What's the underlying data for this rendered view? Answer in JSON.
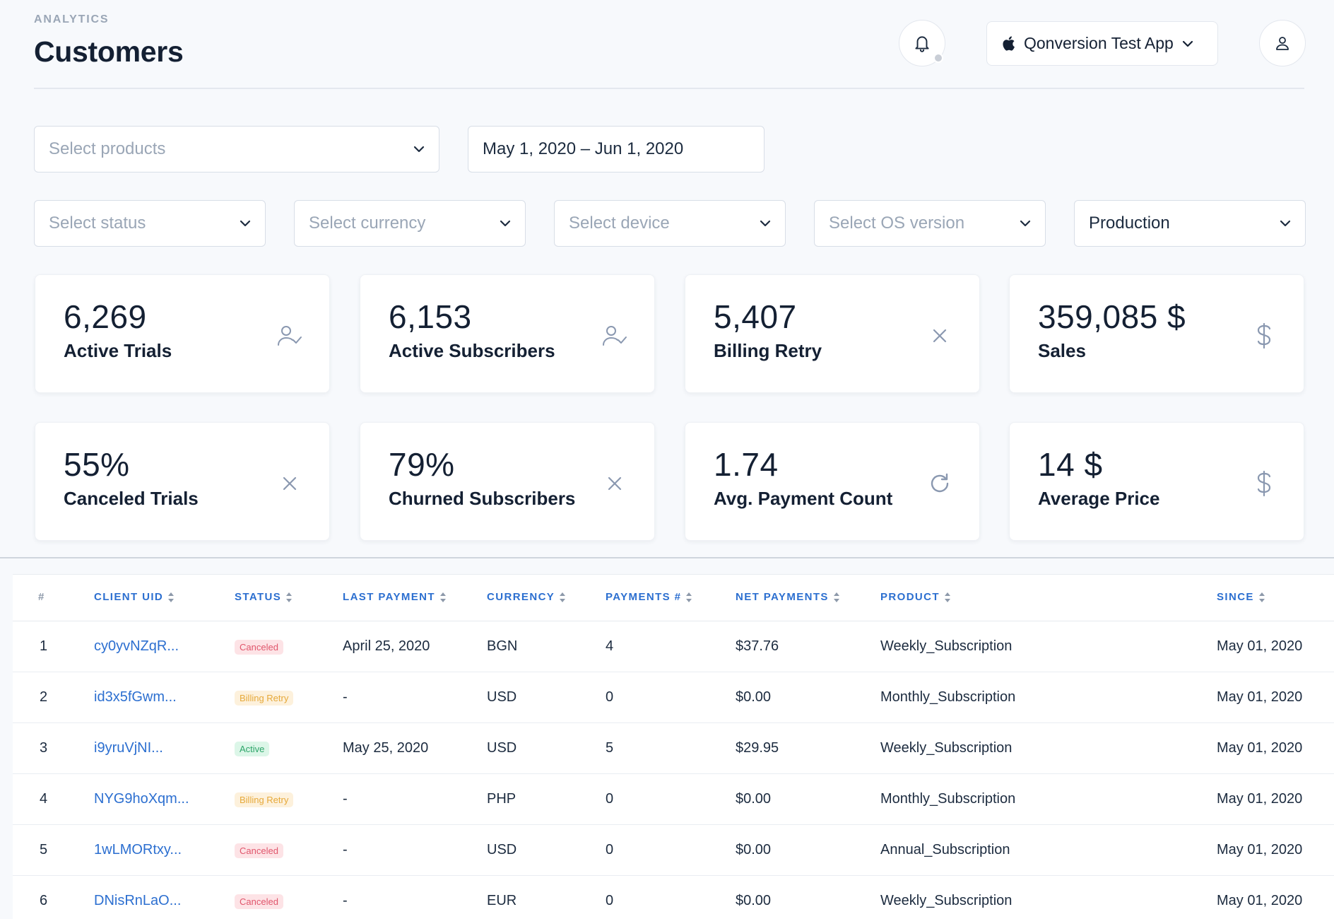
{
  "header": {
    "eyebrow": "ANALYTICS",
    "title": "Customers",
    "app_name": "Qonversion Test App"
  },
  "filters": {
    "products_placeholder": "Select products",
    "date_range": "May 1, 2020 – Jun 1, 2020",
    "status_placeholder": "Select status",
    "currency_placeholder": "Select currency",
    "device_placeholder": "Select device",
    "os_placeholder": "Select OS version",
    "environment": "Production"
  },
  "stats": [
    {
      "value": "6,269",
      "caption": "Active Trials",
      "icon": "user-check-icon"
    },
    {
      "value": "6,153",
      "caption": "Active Subscribers",
      "icon": "user-check-icon"
    },
    {
      "value": "5,407",
      "caption": "Billing Retry",
      "icon": "close-icon"
    },
    {
      "value": "359,085 $",
      "caption": "Sales",
      "icon": "dollar-icon"
    },
    {
      "value": "55%",
      "caption": "Canceled Trials",
      "icon": "close-icon"
    },
    {
      "value": "79%",
      "caption": "Churned Subscribers",
      "icon": "close-icon"
    },
    {
      "value": "1.74",
      "caption": "Avg. Payment Count",
      "icon": "refresh-icon"
    },
    {
      "value": "14 $",
      "caption": "Average Price",
      "icon": "dollar-icon"
    }
  ],
  "table": {
    "columns": [
      "#",
      "CLIENT UID",
      "STATUS",
      "LAST PAYMENT",
      "CURRENCY",
      "PAYMENTS #",
      "NET PAYMENTS",
      "PRODUCT",
      "SINCE"
    ],
    "rows": [
      {
        "num": "1",
        "uid": "cy0yvNZqR...",
        "status": "Canceled",
        "status_kind": "canceled",
        "last_payment": "April 25, 2020",
        "currency": "BGN",
        "payments": "4",
        "net": "$37.76",
        "product": "Weekly_Subscription",
        "since": "May 01, 2020"
      },
      {
        "num": "2",
        "uid": "id3x5fGwm...",
        "status": "Billing Retry",
        "status_kind": "retry",
        "last_payment": "-",
        "currency": "USD",
        "payments": "0",
        "net": "$0.00",
        "product": "Monthly_Subscription",
        "since": "May 01, 2020"
      },
      {
        "num": "3",
        "uid": "i9yruVjNI...",
        "status": "Active",
        "status_kind": "active",
        "last_payment": "May 25, 2020",
        "currency": "USD",
        "payments": "5",
        "net": "$29.95",
        "product": "Weekly_Subscription",
        "since": "May 01, 2020"
      },
      {
        "num": "4",
        "uid": "NYG9hoXqm...",
        "status": "Billing Retry",
        "status_kind": "retry",
        "last_payment": "-",
        "currency": "PHP",
        "payments": "0",
        "net": "$0.00",
        "product": "Monthly_Subscription",
        "since": "May 01, 2020"
      },
      {
        "num": "5",
        "uid": "1wLMORtxy...",
        "status": "Canceled",
        "status_kind": "canceled",
        "last_payment": "-",
        "currency": "USD",
        "payments": "0",
        "net": "$0.00",
        "product": "Annual_Subscription",
        "since": "May 01, 2020"
      },
      {
        "num": "6",
        "uid": "DNisRnLaO...",
        "status": "Canceled",
        "status_kind": "canceled",
        "last_payment": "-",
        "currency": "EUR",
        "payments": "0",
        "net": "$0.00",
        "product": "Weekly_Subscription",
        "since": "May 01, 2020"
      }
    ]
  },
  "colors": {
    "accent": "#2c6fd0",
    "canceled": "#e0566c",
    "retry": "#e6a93a",
    "active": "#2ea56a"
  }
}
